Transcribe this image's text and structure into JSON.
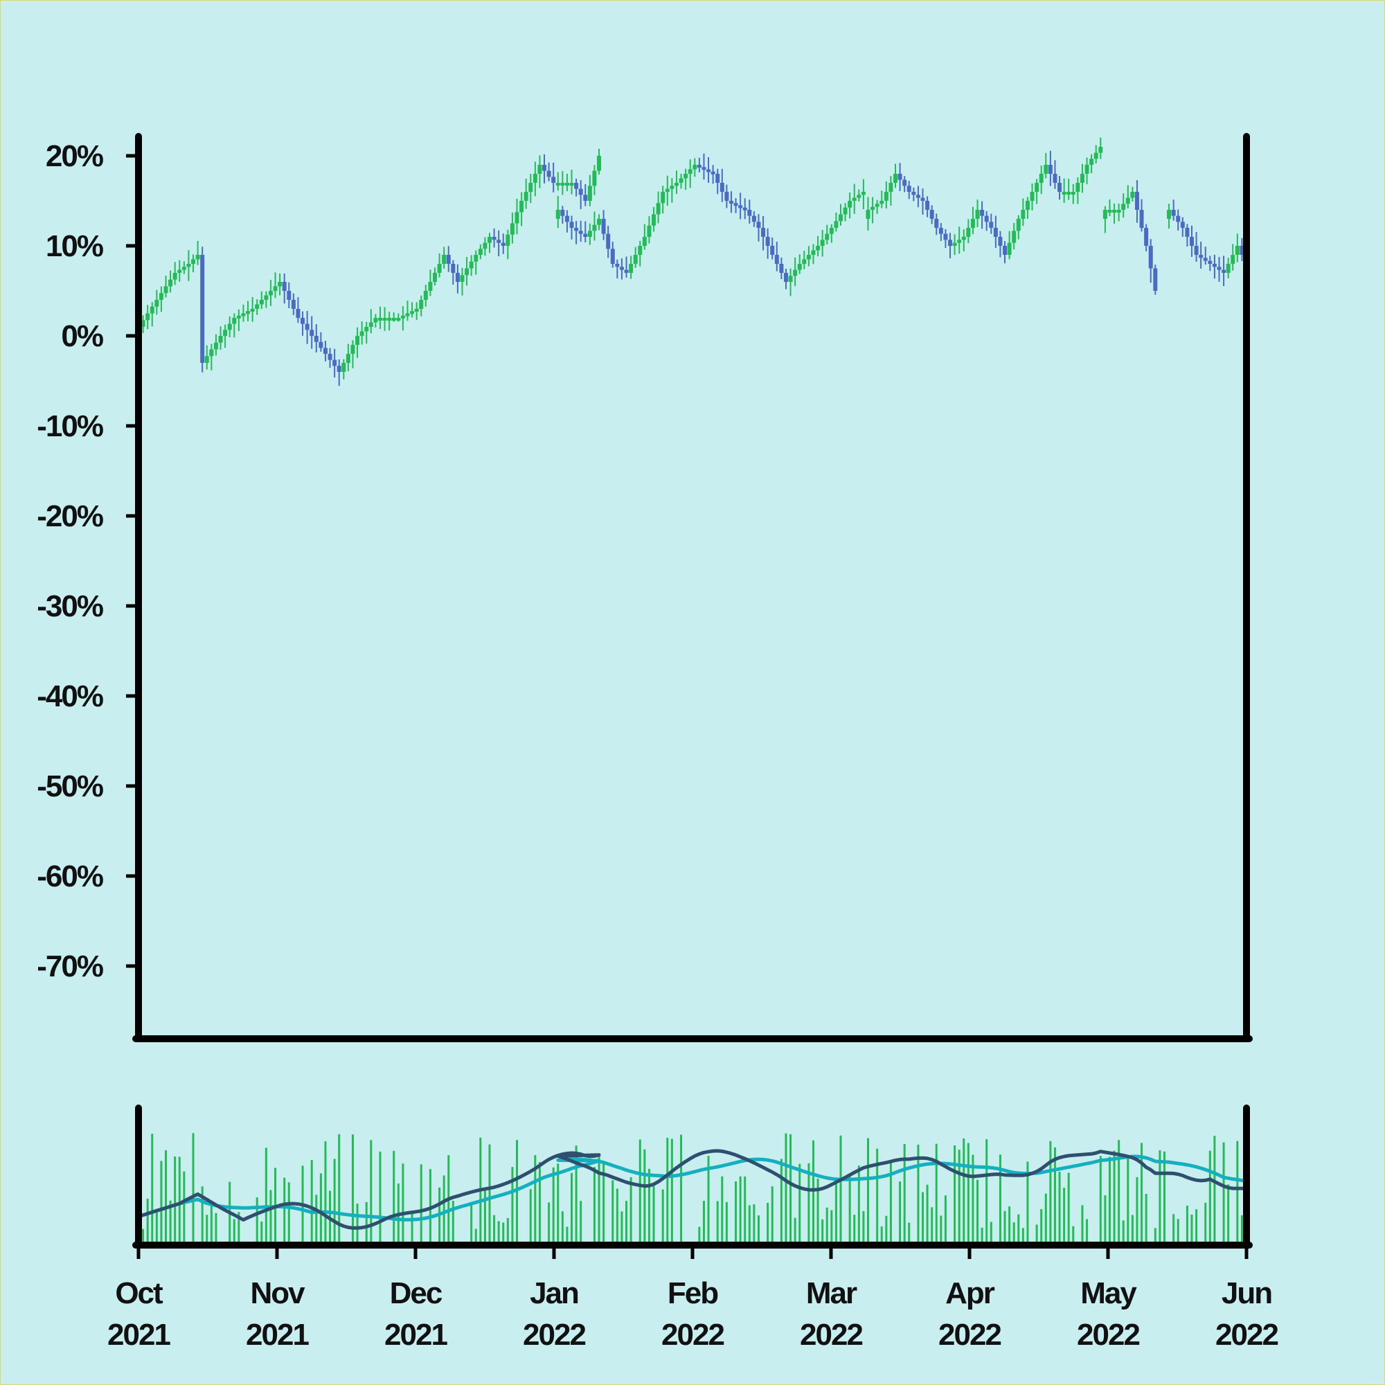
{
  "chart_data": {
    "type": "candlestick",
    "title": "",
    "xlabel": "",
    "ylabel": "",
    "x_range": [
      "2021-10-01",
      "2022-06-01"
    ],
    "ylim": [
      -0.78,
      0.22
    ],
    "yticks": [
      "20%",
      "10%",
      "0%",
      "-10%",
      "-20%",
      "-30%",
      "-40%",
      "-50%",
      "-60%",
      "-70%"
    ],
    "xticks": [
      {
        "month": "Oct",
        "year": "2021"
      },
      {
        "month": "Nov",
        "year": "2021"
      },
      {
        "month": "Dec",
        "year": "2021"
      },
      {
        "month": "Jan",
        "year": "2022"
      },
      {
        "month": "Feb",
        "year": "2022"
      },
      {
        "month": "Mar",
        "year": "2022"
      },
      {
        "month": "Apr",
        "year": "2022"
      },
      {
        "month": "May",
        "year": "2022"
      },
      {
        "month": "Jun",
        "year": "2022"
      }
    ],
    "colors": {
      "up": "#22bb55",
      "down": "#4a6bc4",
      "volume": "#22bb55",
      "ma_fast": "#2f4f6f",
      "ma_slow": "#14b0bf"
    },
    "close_path": [
      [
        "2021-10-01",
        0.01
      ],
      [
        "2021-10-05",
        0.04
      ],
      [
        "2021-10-09",
        0.07
      ],
      [
        "2021-10-12",
        0.08
      ],
      [
        "2021-10-14",
        0.09
      ],
      [
        "2021-10-15",
        -0.03
      ],
      [
        "2021-10-19",
        0.0
      ],
      [
        "2021-10-22",
        0.02
      ],
      [
        "2021-10-26",
        0.03
      ],
      [
        "2021-10-30",
        0.05
      ],
      [
        "2021-11-01",
        0.06
      ],
      [
        "2021-11-05",
        0.02
      ],
      [
        "2021-11-08",
        0.0
      ],
      [
        "2021-11-11",
        -0.02
      ],
      [
        "2021-11-14",
        -0.04
      ],
      [
        "2021-11-18",
        0.0
      ],
      [
        "2021-11-22",
        0.02
      ],
      [
        "2021-11-27",
        0.02
      ],
      [
        "2021-12-01",
        0.03
      ],
      [
        "2021-12-04",
        0.06
      ],
      [
        "2021-12-07",
        0.09
      ],
      [
        "2021-12-10",
        0.06
      ],
      [
        "2021-12-14",
        0.09
      ],
      [
        "2021-12-17",
        0.11
      ],
      [
        "2021-12-20",
        0.1
      ],
      [
        "2021-12-24",
        0.15
      ],
      [
        "2021-12-28",
        0.19
      ],
      [
        "2021-12-31",
        0.17
      ],
      [
        "2022-01-04",
        0.17
      ],
      [
        "2022-01-07",
        0.15
      ],
      [
        "2022-01-10",
        0.2
      ],
      [
        "2022-01-11",
        0.14
      ],
      [
        "2022-01-14",
        0.12
      ],
      [
        "2022-01-17",
        0.11
      ],
      [
        "2022-01-20",
        0.13
      ],
      [
        "2022-01-23",
        0.08
      ],
      [
        "2022-01-26",
        0.07
      ],
      [
        "2022-01-30",
        0.11
      ],
      [
        "2022-02-03",
        0.16
      ],
      [
        "2022-02-06",
        0.17
      ],
      [
        "2022-02-10",
        0.19
      ],
      [
        "2022-02-14",
        0.18
      ],
      [
        "2022-02-17",
        0.15
      ],
      [
        "2022-02-21",
        0.14
      ],
      [
        "2022-02-24",
        0.12
      ],
      [
        "2022-02-27",
        0.09
      ],
      [
        "2022-03-01",
        0.06
      ],
      [
        "2022-03-04",
        0.08
      ],
      [
        "2022-03-08",
        0.1
      ],
      [
        "2022-03-11",
        0.12
      ],
      [
        "2022-03-15",
        0.15
      ],
      [
        "2022-03-18",
        0.16
      ],
      [
        "2022-03-21",
        0.15
      ],
      [
        "2022-03-25",
        0.18
      ],
      [
        "2022-03-28",
        0.2
      ],
      [
        "2022-03-30",
        0.21
      ],
      [
        "2022-04-06",
        0.14
      ],
      [
        "2022-04-09",
        0.15
      ],
      [
        "2022-04-12",
        0.18
      ],
      [
        "2022-04-15",
        0.16
      ],
      [
        "2022-04-18",
        0.15
      ],
      [
        "2022-04-21",
        0.12
      ],
      [
        "2022-04-24",
        0.1
      ],
      [
        "2022-04-27",
        0.11
      ],
      [
        "2022-04-30",
        0.14
      ],
      [
        "2022-05-03",
        0.12
      ],
      [
        "2022-05-06",
        0.09
      ],
      [
        "2022-05-09",
        0.13
      ],
      [
        "2022-05-12",
        0.16
      ],
      [
        "2022-05-15",
        0.19
      ],
      [
        "2022-05-18",
        0.16
      ],
      [
        "2022-05-22",
        0.16
      ],
      [
        "2022-05-25",
        0.19
      ],
      [
        "2022-05-28",
        0.21
      ],
      [
        "2022-05-30",
        0.2
      ],
      [
        "2022-05-01",
        0.21
      ]
    ],
    "segments_note": "",
    "segments": [
      {
        "start": "2021-10-01",
        "end": "2022-01-01",
        "points": [
          [
            0,
            0.01
          ],
          [
            4,
            0.04
          ],
          [
            8,
            0.07
          ],
          [
            11,
            0.08
          ],
          [
            13,
            0.09
          ],
          [
            14,
            -0.03
          ],
          [
            18,
            0.0
          ],
          [
            21,
            0.02
          ],
          [
            25,
            0.03
          ],
          [
            29,
            0.05
          ],
          [
            31,
            0.06
          ],
          [
            35,
            0.02
          ],
          [
            38,
            0.0
          ],
          [
            41,
            -0.02
          ],
          [
            44,
            -0.04
          ],
          [
            48,
            0.0
          ],
          [
            52,
            0.02
          ],
          [
            57,
            0.02
          ],
          [
            61,
            0.03
          ],
          [
            64,
            0.06
          ],
          [
            67,
            0.09
          ],
          [
            70,
            0.06
          ],
          [
            74,
            0.09
          ],
          [
            77,
            0.11
          ],
          [
            80,
            0.1
          ],
          [
            84,
            0.15
          ],
          [
            88,
            0.19
          ],
          [
            91,
            0.17
          ],
          [
            95,
            0.17
          ],
          [
            98,
            0.15
          ],
          [
            101,
            0.2
          ]
        ]
      },
      {
        "start": "2022-01-01",
        "end": "2022-03-08",
        "points": [
          [
            0,
            0.14
          ],
          [
            3,
            0.12
          ],
          [
            6,
            0.11
          ],
          [
            9,
            0.13
          ],
          [
            12,
            0.08
          ],
          [
            15,
            0.07
          ],
          [
            19,
            0.11
          ],
          [
            23,
            0.16
          ],
          [
            26,
            0.17
          ],
          [
            30,
            0.19
          ],
          [
            34,
            0.18
          ],
          [
            37,
            0.15
          ],
          [
            41,
            0.14
          ],
          [
            44,
            0.12
          ],
          [
            47,
            0.09
          ],
          [
            50,
            0.06
          ],
          [
            53,
            0.08
          ],
          [
            57,
            0.1
          ],
          [
            60,
            0.12
          ],
          [
            64,
            0.15
          ],
          [
            67,
            0.16
          ]
        ]
      },
      {
        "start": "2022-03-10",
        "end": "2022-04-28",
        "points": [
          [
            0,
            0.14
          ],
          [
            3,
            0.15
          ],
          [
            6,
            0.18
          ],
          [
            9,
            0.16
          ],
          [
            12,
            0.15
          ],
          [
            15,
            0.12
          ],
          [
            18,
            0.1
          ],
          [
            21,
            0.11
          ],
          [
            24,
            0.14
          ],
          [
            27,
            0.12
          ],
          [
            30,
            0.09
          ],
          [
            33,
            0.13
          ],
          [
            36,
            0.16
          ],
          [
            39,
            0.19
          ],
          [
            42,
            0.16
          ],
          [
            45,
            0.16
          ],
          [
            48,
            0.19
          ],
          [
            51,
            0.21
          ]
        ]
      },
      {
        "start": "2022-05-01",
        "end": "2022-05-12",
        "points": [
          [
            0,
            0.14
          ],
          [
            3,
            0.14
          ],
          [
            6,
            0.16
          ],
          [
            9,
            0.1
          ],
          [
            11,
            0.05
          ]
        ]
      },
      {
        "start": "2022-05-15",
        "end": "2022-06-01",
        "points": [
          [
            0,
            0.14
          ],
          [
            3,
            0.12
          ],
          [
            6,
            0.09
          ],
          [
            9,
            0.08
          ],
          [
            12,
            0.07
          ],
          [
            15,
            0.1
          ],
          [
            17,
            0.08
          ]
        ]
      }
    ],
    "volume_panel": {
      "series": [
        {
          "type": "bar"
        },
        {
          "type": "line"
        },
        {
          "type": "line"
        }
      ]
    }
  }
}
